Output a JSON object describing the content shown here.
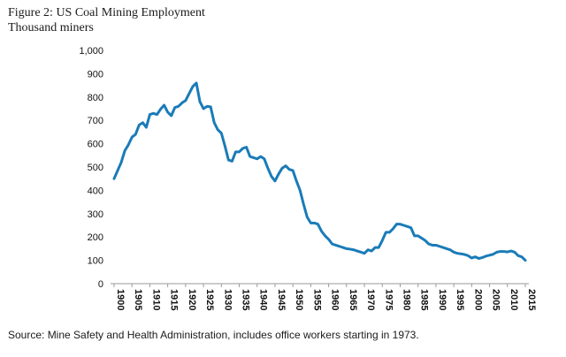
{
  "figure": {
    "title": "Figure 2: US Coal Mining Employment",
    "subtitle": "Thousand miners",
    "source": "Source: Mine Safety and Health Administration, includes office workers starting in 1973."
  },
  "chart_data": {
    "type": "line",
    "title": "Figure 2: US Coal Mining Employment",
    "subtitle": "Thousand miners",
    "ylim": [
      0,
      1000
    ],
    "yticks": [
      0,
      100,
      200,
      300,
      400,
      500,
      600,
      700,
      800,
      900,
      1000
    ],
    "ytick_labels": [
      "0",
      "100",
      "200",
      "300",
      "400",
      "500",
      "600",
      "700",
      "800",
      "900",
      "1,000"
    ],
    "xlim": [
      1900,
      2015
    ],
    "xticks": [
      1900,
      1905,
      1910,
      1915,
      1920,
      1925,
      1930,
      1935,
      1940,
      1945,
      1950,
      1955,
      1960,
      1965,
      1970,
      1975,
      1980,
      1985,
      1990,
      1995,
      2000,
      2005,
      2010,
      2015
    ],
    "grid": false,
    "color": "#1a7bb8",
    "series": [
      {
        "x": [
          1900,
          1901,
          1902,
          1903,
          1904,
          1905,
          1906,
          1907,
          1908,
          1909,
          1910,
          1911,
          1912,
          1913,
          1914,
          1915,
          1916,
          1917,
          1918,
          1919,
          1920,
          1921,
          1922,
          1923,
          1924,
          1925,
          1926,
          1927,
          1928,
          1929,
          1930,
          1931,
          1932,
          1933,
          1934,
          1935,
          1936,
          1937,
          1938,
          1939,
          1940,
          1941,
          1942,
          1943,
          1944,
          1945,
          1946,
          1947,
          1948,
          1949,
          1950,
          1951,
          1952,
          1953,
          1954,
          1955,
          1956,
          1957,
          1958,
          1959,
          1960,
          1961,
          1962,
          1963,
          1964,
          1965,
          1966,
          1967,
          1968,
          1969,
          1970,
          1971,
          1972,
          1973,
          1974,
          1975,
          1976,
          1977,
          1978,
          1979,
          1980,
          1981,
          1982,
          1983,
          1984,
          1985,
          1986,
          1987,
          1988,
          1989,
          1990,
          1991,
          1992,
          1993,
          1994,
          1995,
          1996,
          1997,
          1998,
          1999,
          2000,
          2001,
          2002,
          2003,
          2004,
          2005,
          2006,
          2007,
          2008,
          2009,
          2010,
          2011,
          2012,
          2013,
          2014,
          2015
        ],
        "y": [
          450,
          485,
          520,
          570,
          595,
          628,
          640,
          680,
          690,
          670,
          725,
          730,
          725,
          748,
          765,
          735,
          720,
          755,
          760,
          775,
          785,
          815,
          845,
          860,
          780,
          750,
          760,
          758,
          690,
          660,
          645,
          590,
          530,
          525,
          565,
          565,
          580,
          585,
          545,
          540,
          535,
          545,
          535,
          495,
          460,
          440,
          470,
          495,
          505,
          490,
          485,
          440,
          400,
          340,
          285,
          260,
          260,
          255,
          225,
          205,
          190,
          170,
          165,
          160,
          155,
          150,
          148,
          145,
          140,
          135,
          130,
          145,
          140,
          155,
          155,
          185,
          220,
          220,
          235,
          255,
          255,
          250,
          245,
          240,
          205,
          205,
          195,
          185,
          170,
          165,
          165,
          160,
          155,
          150,
          145,
          135,
          130,
          128,
          125,
          120,
          110,
          115,
          108,
          112,
          118,
          122,
          126,
          135,
          138,
          138,
          136,
          140,
          135,
          120,
          115,
          100
        ]
      }
    ]
  }
}
